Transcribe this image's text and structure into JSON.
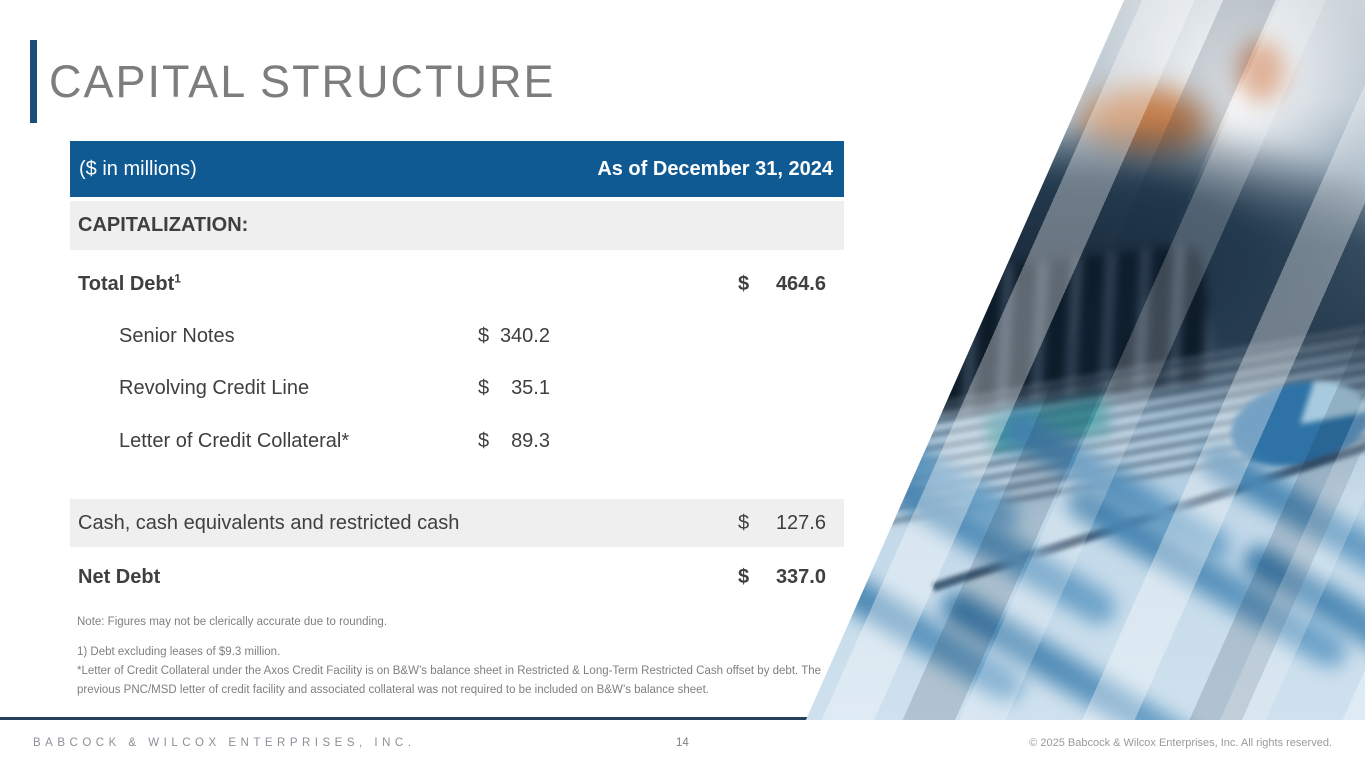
{
  "slide": {
    "title": "CAPITAL STRUCTURE"
  },
  "table": {
    "header": {
      "left": "($ in millions)",
      "right": "As of December 31, 2024"
    },
    "section_label": "CAPITALIZATION:",
    "rows": [
      {
        "label": "Total Debt",
        "sup": "1",
        "currency": "$",
        "value": "464.6",
        "column": "right",
        "bold": true,
        "indent": false,
        "shaded": false
      },
      {
        "label": "Senior Notes",
        "currency": "$",
        "value": "340.2",
        "column": "mid",
        "bold": false,
        "indent": true,
        "shaded": false
      },
      {
        "label": "Revolving Credit Line",
        "currency": "$",
        "value": "35.1",
        "column": "mid",
        "bold": false,
        "indent": true,
        "shaded": false
      },
      {
        "label": "Letter of Credit Collateral*",
        "currency": "$",
        "value": "89.3",
        "column": "mid",
        "bold": false,
        "indent": true,
        "shaded": false
      },
      {
        "label": "Cash, cash equivalents and restricted cash",
        "currency": "$",
        "value": "127.6",
        "column": "right",
        "bold": false,
        "indent": false,
        "shaded": true
      },
      {
        "label": "Net Debt",
        "currency": "$",
        "value": "337.0",
        "column": "right",
        "bold": true,
        "indent": false,
        "shaded": false
      }
    ]
  },
  "notes": [
    "Note: Figures may not be clerically accurate due to rounding.",
    "1) Debt excluding leases of $9.3 million.",
    "*Letter of Credit Collateral under the Axos Credit Facility is on B&W’s balance sheet in Restricted & Long-Term Restricted Cash offset by debt. The previous PNC/MSD letter of credit facility and associated collateral was not required to be included on B&W’s balance sheet."
  ],
  "footer": {
    "company": "BABCOCK & WILCOX ENTERPRISES, INC.",
    "page": "14",
    "copyright": "© 2025 Babcock & Wilcox Enterprises, Inc. All rights reserved."
  },
  "photo": {
    "semantic": "blurred-financial-desk-photo",
    "content": "hand on calculator keyboard over financial documents with blue bar charts and a pie chart, diagonal light stripes overlay"
  },
  "colors": {
    "header_bg": "#105a94",
    "accent_bar": "#1b4e7b",
    "title_color": "#7d7d7d",
    "shaded_row": "#efefef",
    "footer_rule": "#24405a"
  }
}
